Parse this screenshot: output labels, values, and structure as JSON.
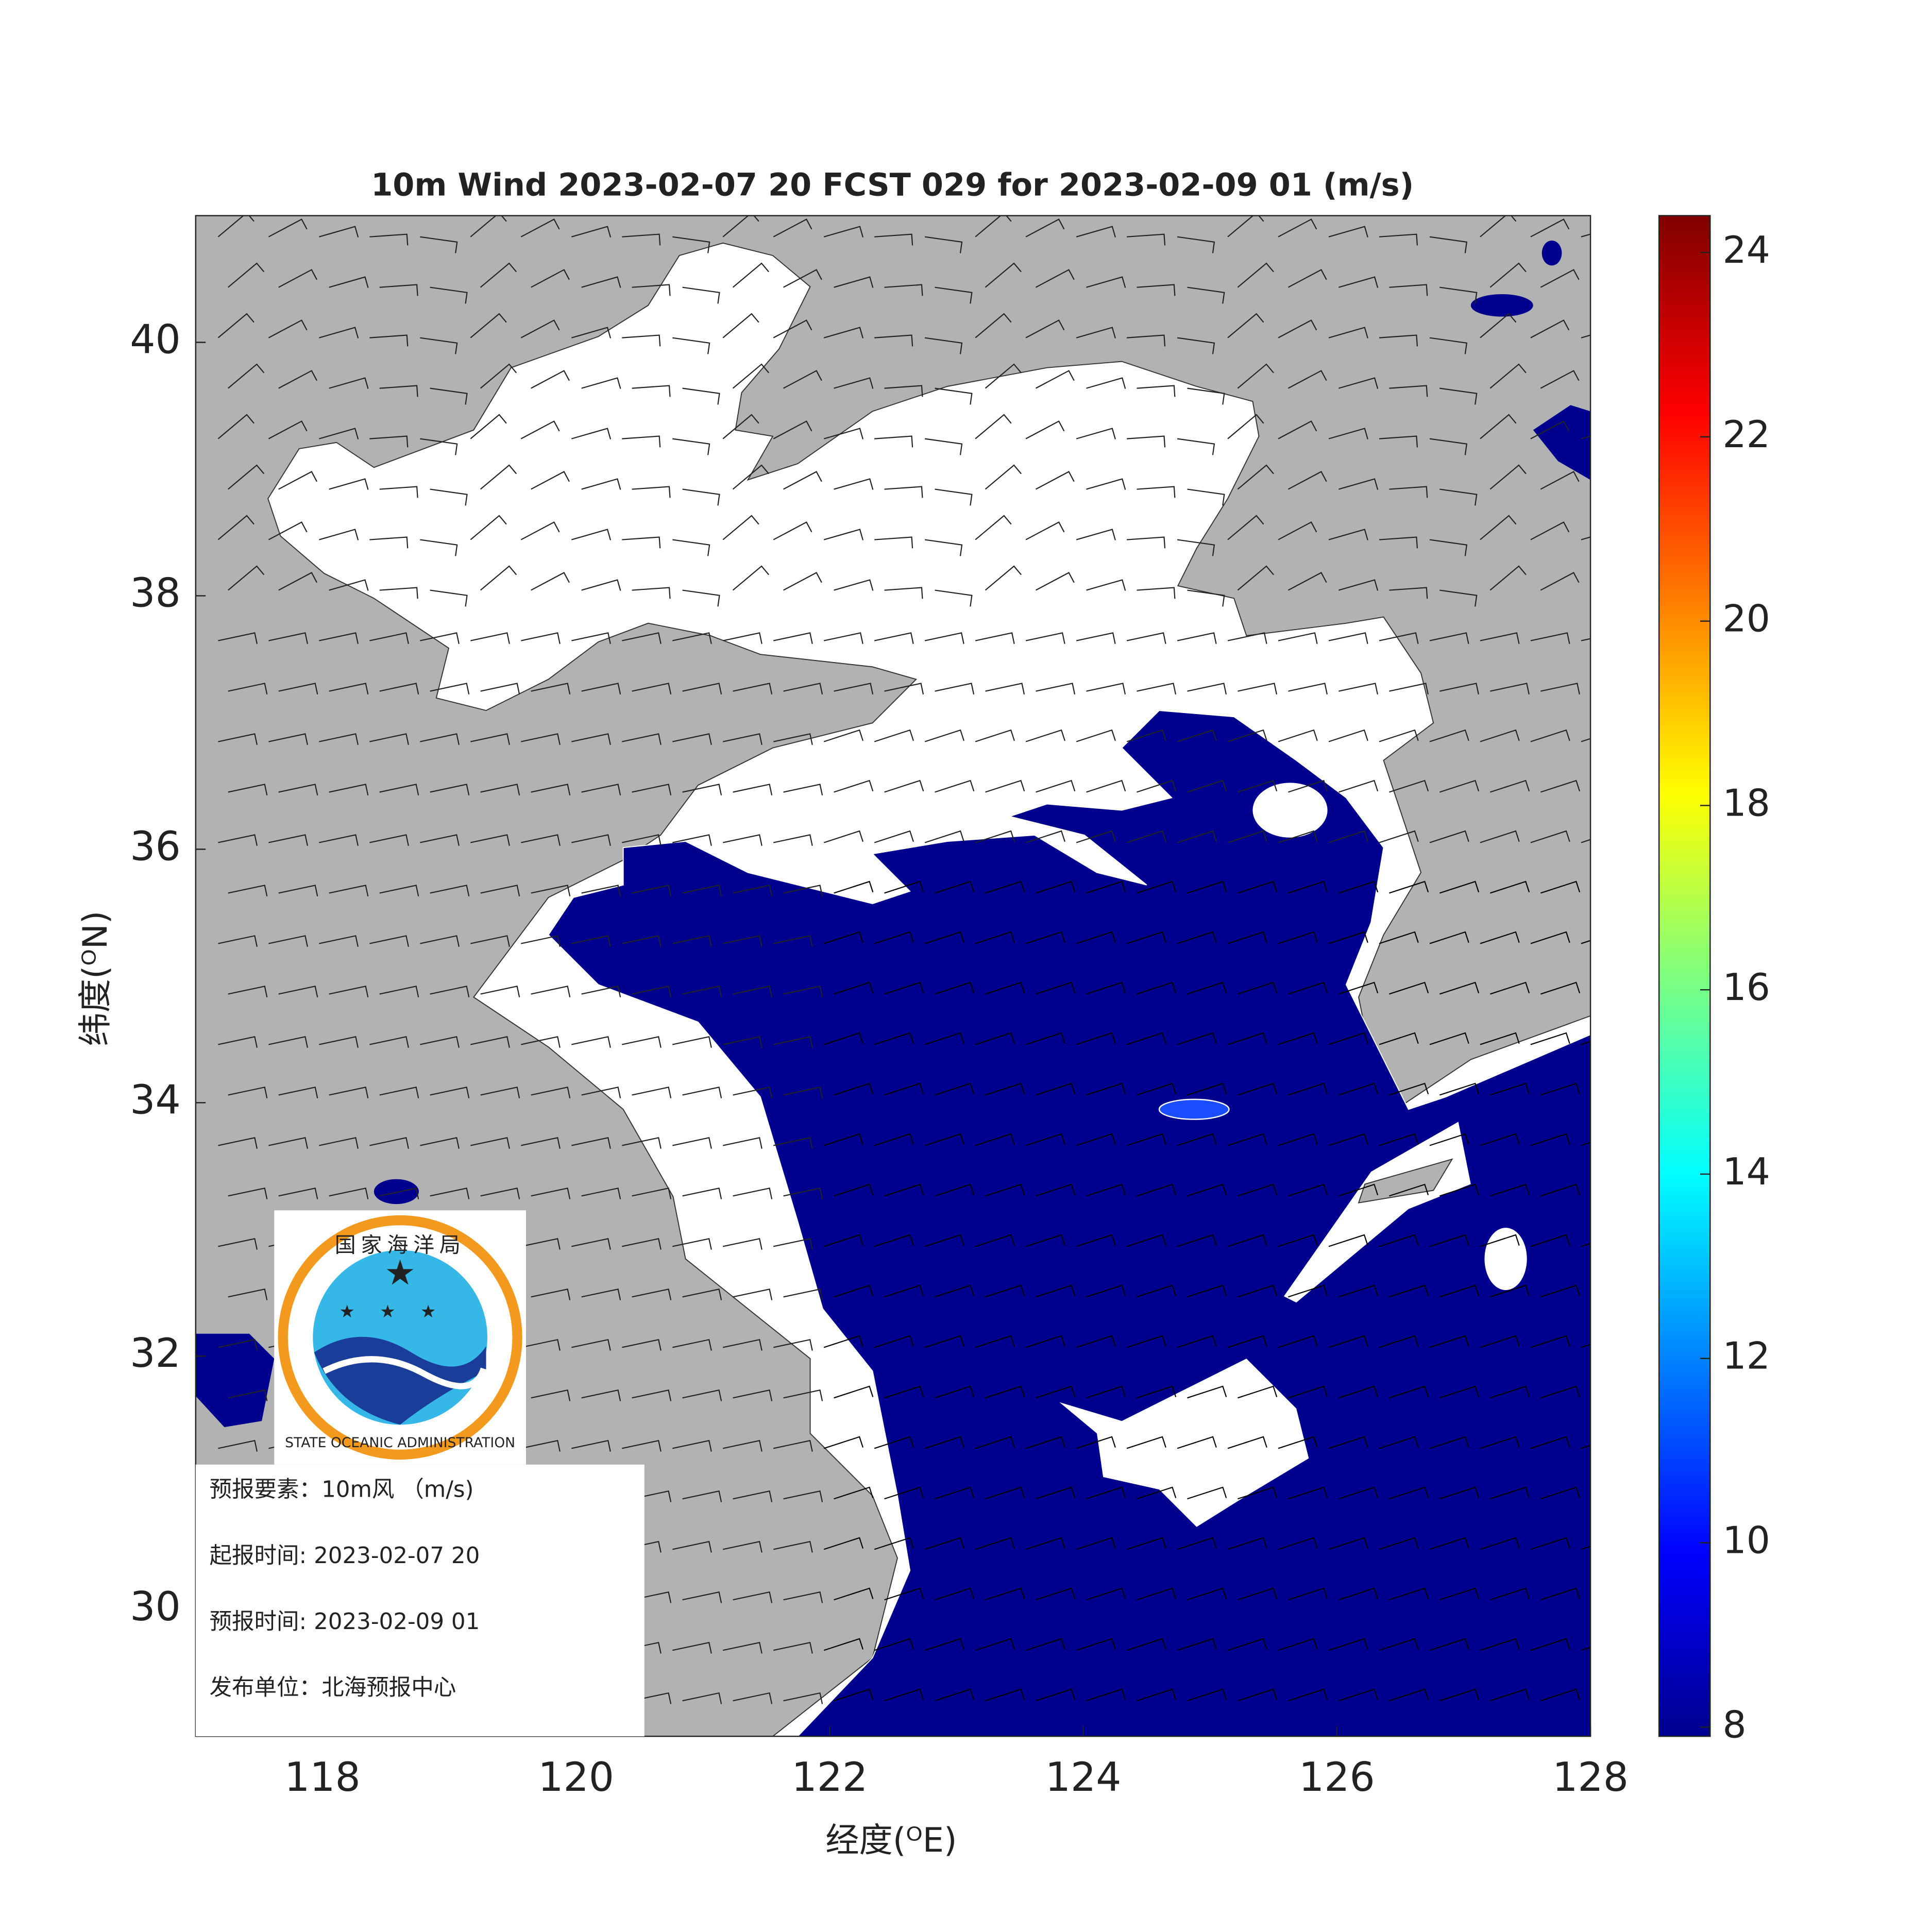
{
  "chart_data": {
    "type": "map",
    "title": "10m Wind 2023-02-07 20 FCST 029 for 2023-02-09 01 (m/s)",
    "x_label": "经度(ᴼE)",
    "y_label": "纬度(ᴼN)",
    "xlim": [
      117,
      128
    ],
    "xticks": [
      118,
      120,
      122,
      124,
      126,
      128
    ],
    "ylim": [
      29,
      41
    ],
    "yticks": [
      30,
      32,
      34,
      36,
      38,
      40
    ],
    "colorbar": {
      "lim": [
        7.9,
        24.4
      ],
      "ticks": [
        8,
        10,
        12,
        14,
        16,
        18,
        20,
        22,
        24
      ],
      "colormap": "jet"
    },
    "logo": {
      "chinese": "国家海洋局",
      "english": "STATE OCEANIC ADMINISTRATION"
    },
    "info": [
      "预报要素：10m风 （m/s)",
      "起报时间: 2023-02-07 20",
      "预报时间: 2023-02-09 01",
      "发布单位：北海预报中心"
    ]
  }
}
